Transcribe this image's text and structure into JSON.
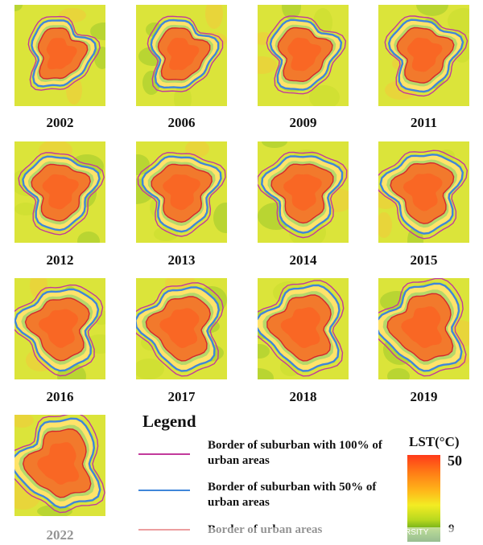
{
  "figure": {
    "panels": [
      {
        "year": "2002"
      },
      {
        "year": "2006"
      },
      {
        "year": "2009"
      },
      {
        "year": "2011"
      },
      {
        "year": "2012"
      },
      {
        "year": "2013"
      },
      {
        "year": "2014"
      },
      {
        "year": "2015"
      },
      {
        "year": "2016"
      },
      {
        "year": "2017"
      },
      {
        "year": "2018"
      },
      {
        "year": "2019"
      },
      {
        "year": "2022"
      }
    ]
  },
  "legend": {
    "title": "Legend",
    "items": [
      {
        "label": "Border of suburban with 100% of urban areas",
        "color": "#c23a9b"
      },
      {
        "label": "Border of suburban with 50% of urban areas",
        "color": "#3f86d9"
      },
      {
        "label": "Border of urban areas",
        "color": "#d4282c"
      }
    ]
  },
  "colorbar": {
    "title": "LST(°C)",
    "max": "50",
    "min": "9",
    "colors": [
      "#ff3b1a",
      "#ffb319",
      "#f3ec23",
      "#4f9b16",
      "#1d6e0c"
    ]
  },
  "watermark": {
    "text": "RSITY"
  }
}
